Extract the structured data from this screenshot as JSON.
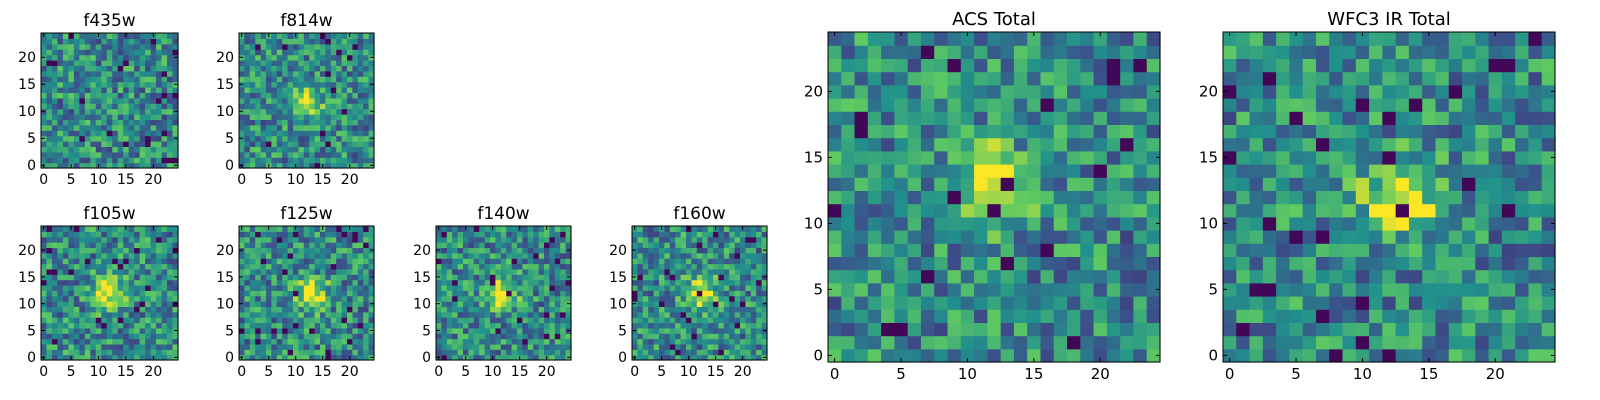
{
  "chart_data": [
    {
      "type": "heatmap",
      "title": "f435w",
      "xlim": [
        -0.5,
        24.5
      ],
      "ylim": [
        -0.5,
        24.5
      ],
      "x_ticks": [
        0,
        5,
        10,
        15,
        20
      ],
      "y_ticks": [
        0,
        5,
        10,
        15,
        20
      ],
      "peak": [
        null,
        null
      ],
      "grid": false
    },
    {
      "type": "heatmap",
      "title": "f814w",
      "xlim": [
        -0.5,
        24.5
      ],
      "ylim": [
        -0.5,
        24.5
      ],
      "x_ticks": [
        0,
        5,
        10,
        15,
        20
      ],
      "y_ticks": [
        0,
        5,
        10,
        15,
        20
      ],
      "peak": [
        12,
        12
      ],
      "grid": false
    },
    {
      "type": "heatmap",
      "title": "f105w",
      "xlim": [
        -0.5,
        24.5
      ],
      "ylim": [
        -0.5,
        24.5
      ],
      "x_ticks": [
        0,
        5,
        10,
        15,
        20
      ],
      "y_ticks": [
        0,
        5,
        10,
        15,
        20
      ],
      "peak": [
        12,
        12
      ],
      "grid": false
    },
    {
      "type": "heatmap",
      "title": "f125w",
      "xlim": [
        -0.5,
        24.5
      ],
      "ylim": [
        -0.5,
        24.5
      ],
      "x_ticks": [
        0,
        5,
        10,
        15,
        20
      ],
      "y_ticks": [
        0,
        5,
        10,
        15,
        20
      ],
      "peak": [
        13,
        12
      ],
      "grid": false
    },
    {
      "type": "heatmap",
      "title": "f140w",
      "xlim": [
        -0.5,
        24.5
      ],
      "ylim": [
        -0.5,
        24.5
      ],
      "x_ticks": [
        0,
        5,
        10,
        15,
        20
      ],
      "y_ticks": [
        0,
        5,
        10,
        15,
        20
      ],
      "peak": [
        12,
        12
      ],
      "grid": false
    },
    {
      "type": "heatmap",
      "title": "f160w",
      "xlim": [
        -0.5,
        24.5
      ],
      "ylim": [
        -0.5,
        24.5
      ],
      "x_ticks": [
        0,
        5,
        10,
        15,
        20
      ],
      "y_ticks": [
        0,
        5,
        10,
        15,
        20
      ],
      "peak": [
        12,
        12
      ],
      "grid": false
    },
    {
      "type": "heatmap",
      "title": "ACS Total",
      "xlim": [
        -0.5,
        24.5
      ],
      "ylim": [
        -0.5,
        24.5
      ],
      "x_ticks": [
        0,
        5,
        10,
        15,
        20
      ],
      "y_ticks": [
        0,
        5,
        10,
        15,
        20
      ],
      "peak": [
        12,
        13
      ],
      "grid": false
    },
    {
      "type": "heatmap",
      "title": "WFC3 IR Total",
      "xlim": [
        -0.5,
        24.5
      ],
      "ylim": [
        -0.5,
        24.5
      ],
      "x_ticks": [
        0,
        5,
        10,
        15,
        20
      ],
      "y_ticks": [
        0,
        5,
        10,
        15,
        20
      ],
      "peak": [
        13,
        12
      ],
      "grid": false
    }
  ],
  "colormap": "viridis",
  "colors": {
    "low": "#440154",
    "mid": "#21918c",
    "high": "#fde725",
    "axis": "#000000",
    "background": "#ffffff"
  }
}
